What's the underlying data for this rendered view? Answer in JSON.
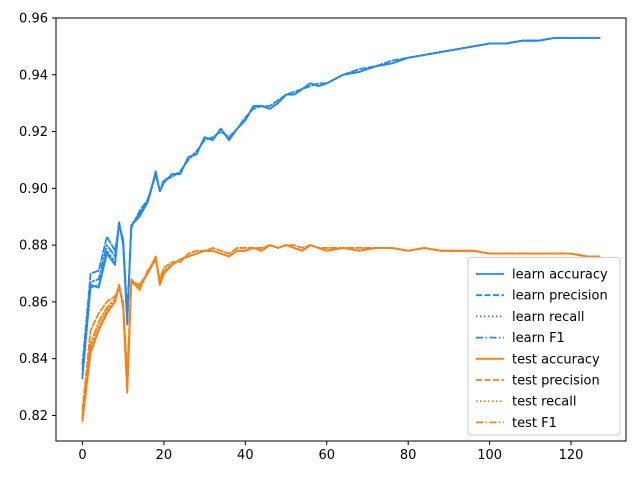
{
  "chart_data": {
    "type": "line",
    "title": "",
    "xlabel": "",
    "ylabel": "",
    "xlim": [
      -6.5,
      133.5
    ],
    "ylim": [
      0.811,
      0.96
    ],
    "x_ticks": [
      0,
      20,
      40,
      60,
      80,
      100,
      120
    ],
    "y_ticks": [
      0.82,
      0.84,
      0.86,
      0.88,
      0.9,
      0.92,
      0.94,
      0.96
    ],
    "x_tick_labels": [
      "0",
      "20",
      "40",
      "60",
      "80",
      "100",
      "120"
    ],
    "y_tick_labels": [
      "0.82",
      "0.84",
      "0.86",
      "0.88",
      "0.90",
      "0.92",
      "0.94",
      "0.96"
    ],
    "grid": false,
    "legend_position": "lower-right",
    "x": [
      0,
      2,
      4,
      6,
      8,
      9,
      10,
      11,
      12,
      14,
      16,
      18,
      19,
      20,
      22,
      24,
      26,
      28,
      30,
      32,
      34,
      36,
      38,
      40,
      42,
      44,
      46,
      48,
      50,
      52,
      54,
      56,
      58,
      60,
      64,
      68,
      72,
      76,
      80,
      84,
      88,
      92,
      96,
      100,
      104,
      108,
      112,
      116,
      120,
      124,
      127
    ],
    "series": [
      {
        "name": "learn accuracy",
        "color": "#1f8af0",
        "dash": "solid",
        "values": [
          0.834,
          0.866,
          0.865,
          0.877,
          0.873,
          0.888,
          0.88,
          0.852,
          0.887,
          0.89,
          0.895,
          0.906,
          0.899,
          0.902,
          0.905,
          0.905,
          0.911,
          0.912,
          0.918,
          0.917,
          0.921,
          0.917,
          0.921,
          0.924,
          0.929,
          0.929,
          0.928,
          0.93,
          0.933,
          0.933,
          0.935,
          0.937,
          0.936,
          0.937,
          0.94,
          0.941,
          0.943,
          0.944,
          0.946,
          0.947,
          0.948,
          0.949,
          0.95,
          0.951,
          0.951,
          0.952,
          0.952,
          0.953,
          0.953,
          0.953,
          0.953
        ]
      },
      {
        "name": "learn precision",
        "color": "#1f8af0",
        "dash": "dashed",
        "values": [
          0.838,
          0.87,
          0.871,
          0.883,
          0.878,
          0.887,
          0.882,
          0.856,
          0.886,
          0.892,
          0.896,
          0.905,
          0.899,
          0.903,
          0.904,
          0.906,
          0.91,
          0.913,
          0.917,
          0.918,
          0.92,
          0.918,
          0.921,
          0.925,
          0.928,
          0.929,
          0.929,
          0.931,
          0.933,
          0.934,
          0.935,
          0.936,
          0.937,
          0.937,
          0.94,
          0.942,
          0.943,
          0.945,
          0.946,
          0.947,
          0.948,
          0.949,
          0.95,
          0.951,
          0.951,
          0.952,
          0.952,
          0.953,
          0.953,
          0.953,
          0.953
        ]
      },
      {
        "name": "learn recall",
        "color": "#1f8af0",
        "dash": "dotted",
        "values": [
          0.833,
          0.865,
          0.866,
          0.878,
          0.874,
          0.888,
          0.881,
          0.853,
          0.887,
          0.891,
          0.895,
          0.905,
          0.899,
          0.902,
          0.905,
          0.905,
          0.911,
          0.912,
          0.918,
          0.917,
          0.921,
          0.917,
          0.921,
          0.924,
          0.929,
          0.929,
          0.928,
          0.93,
          0.933,
          0.933,
          0.935,
          0.937,
          0.936,
          0.937,
          0.94,
          0.941,
          0.943,
          0.944,
          0.946,
          0.947,
          0.948,
          0.949,
          0.95,
          0.951,
          0.951,
          0.952,
          0.952,
          0.953,
          0.953,
          0.953,
          0.953
        ]
      },
      {
        "name": "learn F1",
        "color": "#1f8af0",
        "dash": "dashdot",
        "values": [
          0.836,
          0.867,
          0.868,
          0.88,
          0.876,
          0.888,
          0.881,
          0.854,
          0.887,
          0.891,
          0.895,
          0.905,
          0.899,
          0.902,
          0.905,
          0.905,
          0.911,
          0.912,
          0.918,
          0.917,
          0.921,
          0.917,
          0.921,
          0.924,
          0.929,
          0.929,
          0.928,
          0.93,
          0.933,
          0.933,
          0.935,
          0.937,
          0.936,
          0.937,
          0.94,
          0.941,
          0.943,
          0.944,
          0.946,
          0.947,
          0.948,
          0.949,
          0.95,
          0.951,
          0.951,
          0.952,
          0.952,
          0.953,
          0.953,
          0.953,
          0.953
        ]
      },
      {
        "name": "test accuracy",
        "color": "#ff7f0e",
        "dash": "solid",
        "values": [
          0.818,
          0.842,
          0.85,
          0.856,
          0.86,
          0.866,
          0.858,
          0.828,
          0.867,
          0.866,
          0.87,
          0.876,
          0.866,
          0.87,
          0.873,
          0.875,
          0.876,
          0.877,
          0.878,
          0.878,
          0.877,
          0.876,
          0.878,
          0.878,
          0.879,
          0.878,
          0.88,
          0.879,
          0.88,
          0.879,
          0.878,
          0.88,
          0.879,
          0.878,
          0.879,
          0.878,
          0.879,
          0.879,
          0.878,
          0.879,
          0.878,
          0.878,
          0.878,
          0.877,
          0.877,
          0.877,
          0.877,
          0.877,
          0.877,
          0.876,
          0.876
        ]
      },
      {
        "name": "test precision",
        "color": "#ff7f0e",
        "dash": "dashed",
        "values": [
          0.822,
          0.85,
          0.856,
          0.86,
          0.862,
          0.865,
          0.86,
          0.834,
          0.868,
          0.864,
          0.871,
          0.875,
          0.868,
          0.872,
          0.874,
          0.874,
          0.877,
          0.878,
          0.878,
          0.879,
          0.878,
          0.877,
          0.879,
          0.879,
          0.879,
          0.879,
          0.88,
          0.879,
          0.88,
          0.88,
          0.879,
          0.88,
          0.879,
          0.879,
          0.879,
          0.879,
          0.879,
          0.879,
          0.878,
          0.879,
          0.878,
          0.878,
          0.878,
          0.877,
          0.877,
          0.877,
          0.877,
          0.877,
          0.877,
          0.876,
          0.876
        ]
      },
      {
        "name": "test recall",
        "color": "#ff7f0e",
        "dash": "dotted",
        "values": [
          0.819,
          0.843,
          0.851,
          0.857,
          0.86,
          0.866,
          0.858,
          0.829,
          0.867,
          0.866,
          0.87,
          0.876,
          0.866,
          0.87,
          0.873,
          0.875,
          0.876,
          0.877,
          0.878,
          0.878,
          0.877,
          0.876,
          0.878,
          0.878,
          0.879,
          0.878,
          0.88,
          0.879,
          0.88,
          0.879,
          0.878,
          0.88,
          0.879,
          0.878,
          0.879,
          0.878,
          0.879,
          0.879,
          0.878,
          0.879,
          0.878,
          0.878,
          0.878,
          0.877,
          0.877,
          0.877,
          0.877,
          0.877,
          0.877,
          0.876,
          0.876
        ]
      },
      {
        "name": "test F1",
        "color": "#ff7f0e",
        "dash": "dashdot",
        "values": [
          0.82,
          0.845,
          0.853,
          0.858,
          0.861,
          0.865,
          0.859,
          0.831,
          0.867,
          0.865,
          0.87,
          0.875,
          0.867,
          0.871,
          0.873,
          0.875,
          0.876,
          0.877,
          0.878,
          0.878,
          0.877,
          0.876,
          0.878,
          0.878,
          0.879,
          0.878,
          0.88,
          0.879,
          0.88,
          0.879,
          0.878,
          0.88,
          0.879,
          0.878,
          0.879,
          0.878,
          0.879,
          0.879,
          0.878,
          0.879,
          0.878,
          0.878,
          0.878,
          0.877,
          0.877,
          0.877,
          0.877,
          0.877,
          0.877,
          0.876,
          0.876
        ]
      }
    ]
  }
}
